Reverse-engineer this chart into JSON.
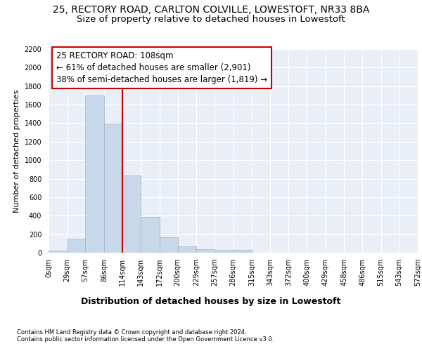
{
  "title_line1": "25, RECTORY ROAD, CARLTON COLVILLE, LOWESTOFT, NR33 8BA",
  "title_line2": "Size of property relative to detached houses in Lowestoft",
  "xlabel": "Distribution of detached houses by size in Lowestoft",
  "ylabel": "Number of detached properties",
  "bin_edges": [
    0,
    29,
    57,
    86,
    114,
    143,
    172,
    200,
    229,
    257,
    286,
    315,
    343,
    372,
    400,
    429,
    458,
    486,
    515,
    543,
    572
  ],
  "bar_heights": [
    20,
    155,
    1700,
    1395,
    835,
    385,
    165,
    68,
    38,
    28,
    28,
    0,
    0,
    0,
    0,
    0,
    0,
    0,
    0,
    0
  ],
  "bar_color": "#c8d8ea",
  "bar_edgecolor": "#9ab4cc",
  "vline_x": 114,
  "vline_color": "#cc0000",
  "annotation_text": "25 RECTORY ROAD: 108sqm\n← 61% of detached houses are smaller (2,901)\n38% of semi-detached houses are larger (1,819) →",
  "annotation_box_edgecolor": "#cc0000",
  "annotation_fontsize": 8.5,
  "ylim": [
    0,
    2200
  ],
  "yticks": [
    0,
    200,
    400,
    600,
    800,
    1000,
    1200,
    1400,
    1600,
    1800,
    2000,
    2200
  ],
  "tick_labels": [
    "0sqm",
    "29sqm",
    "57sqm",
    "86sqm",
    "114sqm",
    "143sqm",
    "172sqm",
    "200sqm",
    "229sqm",
    "257sqm",
    "286sqm",
    "315sqm",
    "343sqm",
    "372sqm",
    "400sqm",
    "429sqm",
    "458sqm",
    "486sqm",
    "515sqm",
    "543sqm",
    "572sqm"
  ],
  "bg_color": "#eaeff7",
  "grid_color": "#ffffff",
  "footer_line1": "Contains HM Land Registry data © Crown copyright and database right 2024.",
  "footer_line2": "Contains public sector information licensed under the Open Government Licence v3.0.",
  "title_fontsize": 10,
  "subtitle_fontsize": 9.5,
  "xlabel_fontsize": 9,
  "ylabel_fontsize": 8,
  "tick_fontsize": 7,
  "footer_fontsize": 6
}
